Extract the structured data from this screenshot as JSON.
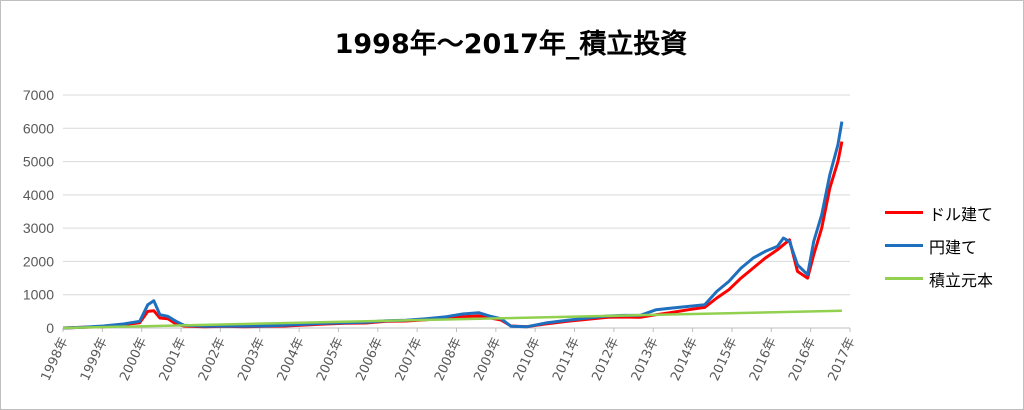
{
  "chart_data": {
    "type": "line",
    "title": "1998年～2017年_積立投資",
    "xlabel": "",
    "ylabel": "",
    "ylim": [
      0,
      7000
    ],
    "yticks": [
      "0",
      "1000",
      "2000",
      "3000",
      "4000",
      "5000",
      "6000",
      "7000"
    ],
    "xlim": [
      1998.0,
      2017.5
    ],
    "xticks": [
      "1998年",
      "1999年",
      "2000年",
      "2001年",
      "2002年",
      "2003年",
      "2004年",
      "2005年",
      "2006年",
      "2007年",
      "2008年",
      "2009年",
      "2010年",
      "2011年",
      "2012年",
      "2013年",
      "2014年",
      "2015年",
      "2016年",
      "2016年",
      "2017年"
    ],
    "grid": true,
    "legend_position": "right",
    "series": [
      {
        "name": "ドル建て",
        "color": "#ff0000",
        "x": [
          1998.0,
          1998.5,
          1999.0,
          1999.5,
          1999.9,
          2000.1,
          2000.25,
          2000.4,
          2000.6,
          2000.8,
          2001.0,
          2001.5,
          2002.0,
          2002.5,
          2003.0,
          2003.5,
          2004.0,
          2004.5,
          2005.0,
          2005.5,
          2006.0,
          2006.5,
          2007.0,
          2007.5,
          2007.9,
          2008.3,
          2008.6,
          2008.85,
          2009.1,
          2009.5,
          2010.0,
          2010.5,
          2011.0,
          2011.5,
          2011.9,
          2012.3,
          2012.7,
          2013.1,
          2013.5,
          2013.9,
          2014.2,
          2014.5,
          2014.8,
          2015.1,
          2015.4,
          2015.7,
          2015.85,
          2016.0,
          2016.2,
          2016.45,
          2016.6,
          2016.8,
          2017.0,
          2017.2,
          2017.3
        ],
        "y": [
          0,
          20,
          40,
          100,
          160,
          500,
          520,
          300,
          280,
          120,
          60,
          40,
          50,
          40,
          50,
          60,
          90,
          120,
          140,
          150,
          200,
          210,
          250,
          300,
          340,
          360,
          300,
          240,
          60,
          40,
          130,
          200,
          260,
          320,
          330,
          320,
          400,
          470,
          550,
          620,
          900,
          1150,
          1500,
          1800,
          2100,
          2350,
          2500,
          2650,
          1700,
          1500,
          2200,
          3000,
          4200,
          5000,
          5600
        ]
      },
      {
        "name": "円建て",
        "color": "#1f6fbf",
        "x": [
          1998.0,
          1998.5,
          1999.0,
          1999.5,
          1999.9,
          2000.1,
          2000.25,
          2000.4,
          2000.6,
          2000.8,
          2001.0,
          2001.5,
          2002.0,
          2002.5,
          2003.0,
          2003.5,
          2004.0,
          2004.5,
          2005.0,
          2005.5,
          2006.0,
          2006.5,
          2007.0,
          2007.5,
          2007.9,
          2008.3,
          2008.6,
          2008.85,
          2009.1,
          2009.5,
          2010.0,
          2010.5,
          2011.0,
          2011.5,
          2011.9,
          2012.3,
          2012.7,
          2013.1,
          2013.5,
          2013.9,
          2014.2,
          2014.5,
          2014.8,
          2015.1,
          2015.4,
          2015.7,
          2015.85,
          2016.0,
          2016.2,
          2016.45,
          2016.6,
          2016.8,
          2017.0,
          2017.2,
          2017.3
        ],
        "y": [
          0,
          20,
          60,
          120,
          200,
          700,
          820,
          400,
          350,
          200,
          80,
          50,
          60,
          50,
          60,
          80,
          110,
          140,
          160,
          170,
          220,
          230,
          280,
          340,
          420,
          460,
          350,
          280,
          50,
          40,
          160,
          230,
          300,
          360,
          380,
          380,
          550,
          600,
          650,
          700,
          1100,
          1400,
          1800,
          2100,
          2300,
          2450,
          2700,
          2600,
          1900,
          1600,
          2600,
          3400,
          4600,
          5500,
          6200
        ]
      },
      {
        "name": "積立元本",
        "color": "#92d050",
        "x": [
          1998.0,
          2017.3
        ],
        "y": [
          0,
          520
        ]
      }
    ]
  }
}
